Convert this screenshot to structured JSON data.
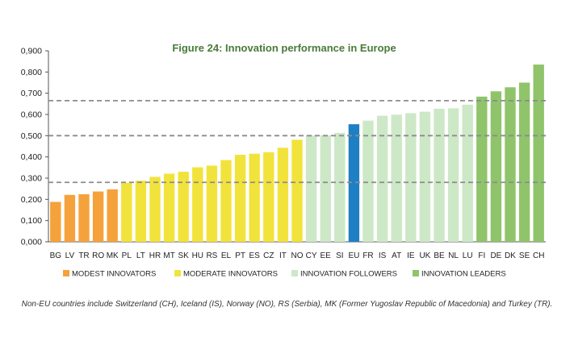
{
  "chart_data": {
    "type": "bar",
    "title": "Figure 24: Innovation performance in Europe",
    "xlabel": "",
    "ylabel": "",
    "ylim": [
      0,
      0.9
    ],
    "yticks": [
      "0,000",
      "0,100",
      "0,200",
      "0,300",
      "0,400",
      "0,500",
      "0,600",
      "0,700",
      "0,800",
      "0,900"
    ],
    "categories": [
      "BG",
      "LV",
      "TR",
      "RO",
      "MK",
      "PL",
      "LT",
      "HR",
      "MT",
      "SK",
      "HU",
      "RS",
      "EL",
      "PT",
      "ES",
      "CZ",
      "IT",
      "NO",
      "CY",
      "EE",
      "SI",
      "EU",
      "FR",
      "IS",
      "AT",
      "IE",
      "UK",
      "BE",
      "NL",
      "LU",
      "FI",
      "DE",
      "DK",
      "SE",
      "CH"
    ],
    "values": [
      0.188,
      0.221,
      0.224,
      0.237,
      0.247,
      0.278,
      0.288,
      0.306,
      0.321,
      0.33,
      0.351,
      0.359,
      0.385,
      0.41,
      0.415,
      0.422,
      0.443,
      0.481,
      0.501,
      0.502,
      0.513,
      0.554,
      0.571,
      0.594,
      0.599,
      0.606,
      0.613,
      0.627,
      0.629,
      0.646,
      0.684,
      0.709,
      0.728,
      0.75,
      0.835
    ],
    "groups": [
      "modest",
      "modest",
      "modest",
      "modest",
      "modest",
      "moderate",
      "moderate",
      "moderate",
      "moderate",
      "moderate",
      "moderate",
      "moderate",
      "moderate",
      "moderate",
      "moderate",
      "moderate",
      "moderate",
      "moderate",
      "followers",
      "followers",
      "followers",
      "eu",
      "followers",
      "followers",
      "followers",
      "followers",
      "followers",
      "followers",
      "followers",
      "followers",
      "leaders",
      "leaders",
      "leaders",
      "leaders",
      "leaders"
    ],
    "thresholds": [
      0.28,
      0.5,
      0.665
    ],
    "legend": [
      {
        "key": "modest",
        "label": "MODEST INNOVATORS",
        "color": "#f5a23c"
      },
      {
        "key": "moderate",
        "label": "MODERATE INNOVATORS",
        "color": "#f2e33c"
      },
      {
        "key": "followers",
        "label": "INNOVATION FOLLOWERS",
        "color": "#cde8c6"
      },
      {
        "key": "leaders",
        "label": "INNOVATION LEADERS",
        "color": "#8fc46a"
      }
    ],
    "eu_color": "#1f7fc4",
    "threshold_color": "#8c8c8c"
  },
  "footnote": "Non-EU countries include Switzerland (CH), Iceland (IS), Norway (NO), RS (Serbia), MK (Former Yugoslav Republic of Macedonia) and Turkey (TR)."
}
